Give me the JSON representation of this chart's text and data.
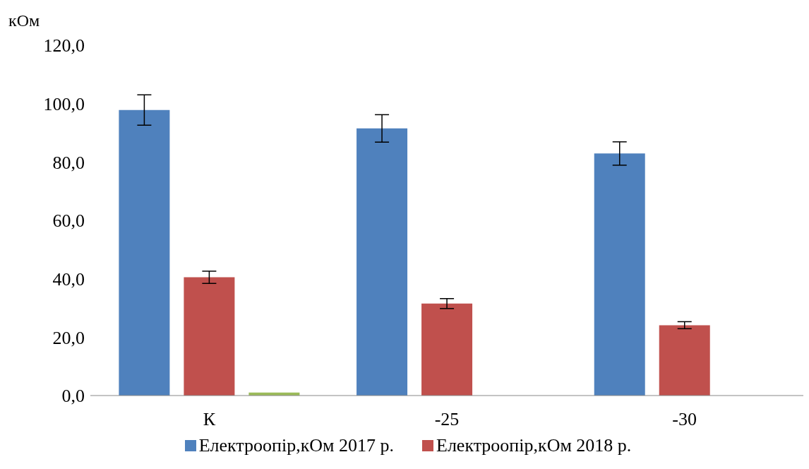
{
  "chart_data": {
    "type": "bar",
    "ylabel": "кОм",
    "categories": [
      "К",
      "-25",
      "-30"
    ],
    "series": [
      {
        "name": "Електроопір,кОм 2017 р.",
        "color": "#4f81bd",
        "values": [
          97.8,
          91.5,
          82.9
        ],
        "errors": [
          5.2,
          4.7,
          4.0
        ]
      },
      {
        "name": "Електроопір,кОм 2018 р.",
        "color": "#c0504d",
        "values": [
          40.5,
          31.5,
          24.1
        ],
        "errors": [
          2.1,
          1.7,
          1.2
        ]
      },
      {
        "color": "#9bbb59",
        "values": [
          1.0,
          null,
          null
        ]
      }
    ],
    "ylim": [
      0,
      120
    ],
    "yticks": [
      {
        "value": 0,
        "label": "0,0"
      },
      {
        "value": 20,
        "label": "20,0"
      },
      {
        "value": 40,
        "label": "40,0"
      },
      {
        "value": 60,
        "label": "60,0"
      },
      {
        "value": 80,
        "label": "80,0"
      },
      {
        "value": 100,
        "label": "100,0"
      },
      {
        "value": 120,
        "label": "120,0"
      }
    ],
    "grid": false,
    "legend": "bottom"
  }
}
